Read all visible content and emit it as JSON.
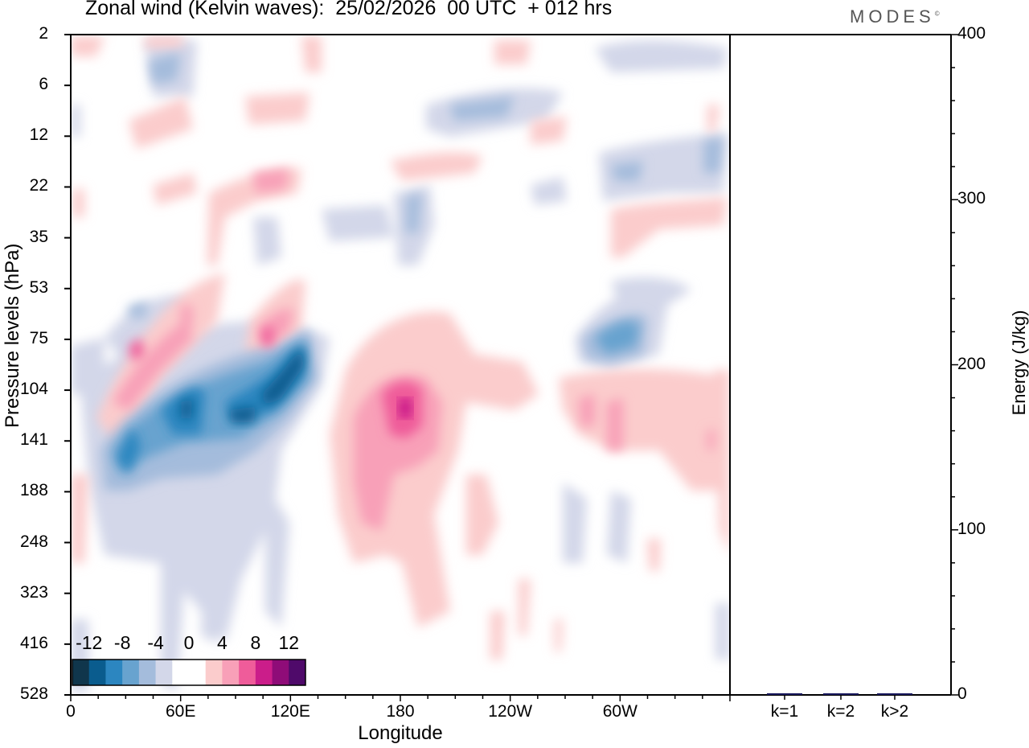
{
  "title": "Zonal wind (Kelvin waves):  25/02/2026  00 UTC  + 012 hrs",
  "logo": "MODES",
  "chart_data": [
    {
      "type": "heatmap",
      "title": "Zonal wind (Kelvin waves):  25/02/2026  00 UTC  + 012 hrs",
      "xlabel": "Longitude",
      "ylabel": "Pressure levels (hPa)",
      "x_ticks": [
        "0",
        "60E",
        "120E",
        "180",
        "120W",
        "60W"
      ],
      "x_tick_degrees": [
        0,
        60,
        120,
        180,
        240,
        300
      ],
      "xlim": [
        0,
        360
      ],
      "y_ticks": [
        "2",
        "6",
        "12",
        "22",
        "35",
        "53",
        "75",
        "104",
        "141",
        "188",
        "248",
        "323",
        "416",
        "528"
      ],
      "y_axis_direction": "top-to-bottom",
      "colorbar": {
        "labels": [
          "-12",
          "-8",
          "-4",
          "0",
          "4",
          "8",
          "12"
        ],
        "colors": [
          "#10364c",
          "#0a5c8e",
          "#2c86c0",
          "#68a3cf",
          "#a4bcdc",
          "#d3d7e9",
          "#ffffff",
          "#ffffff",
          "#fbcccc",
          "#f8a0b8",
          "#ef5c9a",
          "#cb1d8a",
          "#8f0c78",
          "#4f0a6a"
        ],
        "placement": "bottom-left"
      },
      "features": [
        {
          "kind": "negative",
          "level": -12,
          "lon_range": [
            20,
            135
          ],
          "pressure_range": [
            75,
            248
          ],
          "note": "strong easterly band rising eastward"
        },
        {
          "kind": "positive",
          "level": 12,
          "lon_range": [
            145,
            215
          ],
          "pressure_range": [
            75,
            416
          ],
          "note": "westerly maximum near 180"
        },
        {
          "kind": "positive",
          "level": 8,
          "lon_range": [
            10,
            130
          ],
          "pressure_range": [
            53,
            141
          ],
          "note": "tilted westerly band above easterlies"
        },
        {
          "kind": "negative",
          "level": -8,
          "lon_range": [
            280,
            320
          ],
          "pressure_range": [
            53,
            104
          ],
          "note": "easterly patch near 60W"
        },
        {
          "kind": "positive",
          "level": 4,
          "lon_range": [
            265,
            360
          ],
          "pressure_range": [
            75,
            188
          ],
          "note": "weak westerlies in western hemisphere"
        }
      ]
    },
    {
      "type": "bar",
      "ylabel": "Energy (J/kg)",
      "categories": [
        "k=1",
        "k=2",
        "k>2"
      ],
      "values": [
        1.0,
        0.5,
        0.5
      ],
      "ylim": [
        0,
        400
      ],
      "y_ticks": [
        "0",
        "100",
        "200",
        "300",
        "400"
      ],
      "y_tick_values": [
        0,
        100,
        200,
        300,
        400
      ],
      "bar_color": "#1a1a5e"
    }
  ]
}
